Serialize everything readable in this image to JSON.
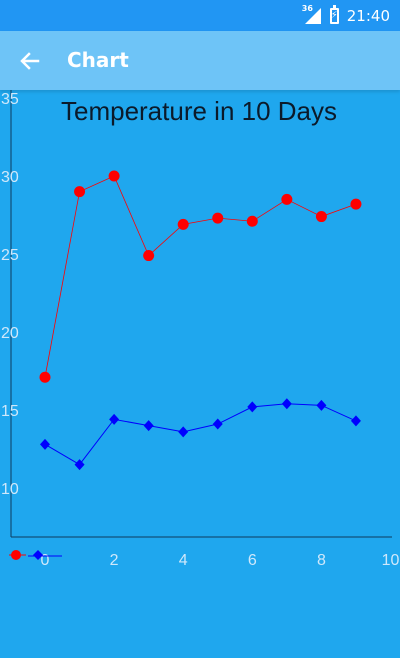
{
  "status_bar": {
    "network": "36",
    "time": "21:40"
  },
  "app_bar": {
    "title": "Chart",
    "back_icon": "arrow-left-icon"
  },
  "colors": {
    "status_bar": "#2196f3",
    "app_bar": "#6ec4f7",
    "background": "#1fa7ee",
    "axis_text": "#cfe8fb",
    "series_high": "#ff0000",
    "series_low": "#0000ff"
  },
  "chart_data": {
    "type": "line",
    "title": "Temperature in 10 Days",
    "x": [
      0,
      1,
      2,
      3,
      4,
      5,
      6,
      7,
      8,
      9
    ],
    "series": [
      {
        "values": [
          17.1,
          29.0,
          30.0,
          24.9,
          26.9,
          27.3,
          27.1,
          28.5,
          27.4,
          28.2
        ],
        "color": "#ff0000",
        "marker": "circle"
      },
      {
        "values": [
          12.8,
          11.5,
          14.4,
          14.0,
          13.6,
          14.1,
          15.2,
          15.4,
          15.3,
          14.3
        ],
        "color": "#0000ff",
        "marker": "diamond"
      }
    ],
    "xlim": [
      0,
      10
    ],
    "ylim": [
      7,
      35
    ],
    "x_ticks": [
      "0",
      "2",
      "4",
      "6",
      "8",
      "10"
    ],
    "y_ticks": [
      "10",
      "15",
      "20",
      "25",
      "30",
      "35"
    ],
    "grid": false,
    "legend": "bottom-left"
  }
}
